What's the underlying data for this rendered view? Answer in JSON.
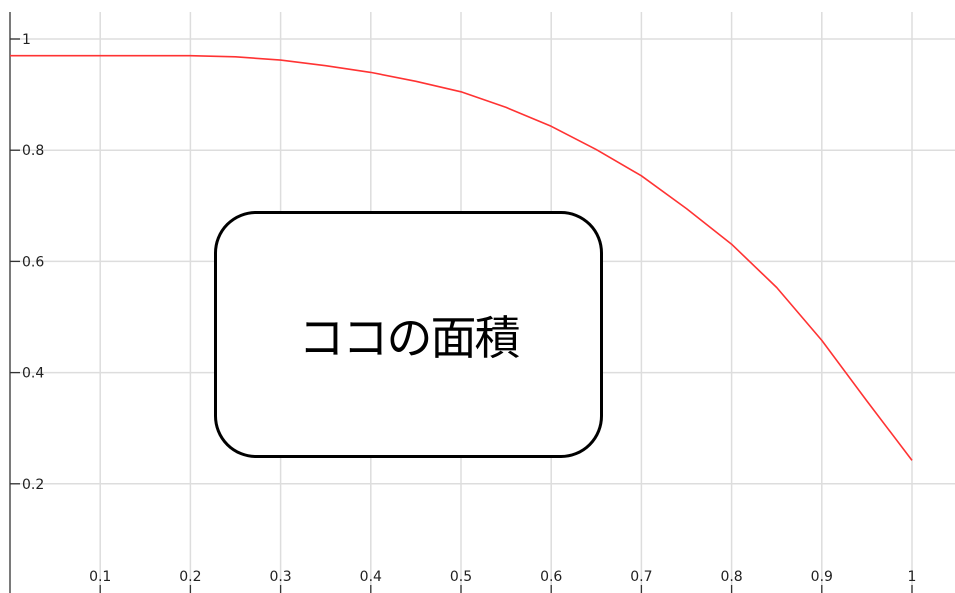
{
  "chart_data": {
    "type": "line",
    "title": "",
    "xlabel": "",
    "ylabel": "",
    "xlim": [
      0,
      1.05
    ],
    "ylim": [
      0,
      1.05
    ],
    "grid": true,
    "x_ticks": [
      "0.1",
      "0.2",
      "0.3",
      "0.4",
      "0.5",
      "0.6",
      "0.7",
      "0.8",
      "0.9",
      "1"
    ],
    "y_ticks": [
      "0.2",
      "0.4",
      "0.6",
      "0.8",
      "1"
    ],
    "series": [
      {
        "color": "#ff3333",
        "x": [
          0,
          0.05,
          0.1,
          0.15,
          0.2,
          0.25,
          0.3,
          0.35,
          0.4,
          0.45,
          0.5,
          0.55,
          0.6,
          0.65,
          0.7,
          0.75,
          0.8,
          0.85,
          0.9,
          0.95,
          1.0
        ],
        "y": [
          0.97,
          0.97,
          0.97,
          0.97,
          0.97,
          0.968,
          0.962,
          0.952,
          0.94,
          0.924,
          0.905,
          0.877,
          0.843,
          0.801,
          0.754,
          0.695,
          0.631,
          0.553,
          0.458,
          0.349,
          0.242
        ]
      }
    ]
  },
  "annotation": {
    "text": "ココの面積"
  }
}
